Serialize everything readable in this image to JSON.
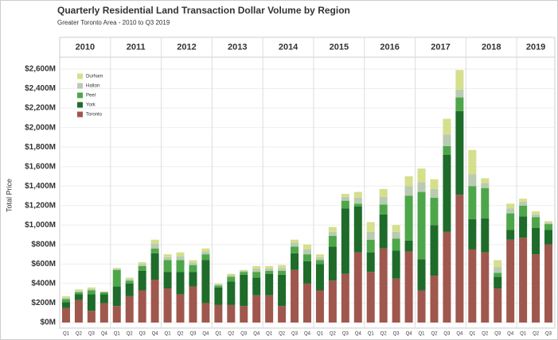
{
  "chart_data": {
    "type": "stacked_bar",
    "title": "Quarterly Residential Land Transaction Dollar Volume by Region",
    "subtitle": "Greater Toronto Area - 2010 to Q3 2019",
    "y_label": "Total Price",
    "years": [
      "2010",
      "2011",
      "2012",
      "2013",
      "2014",
      "2015",
      "2016",
      "2017",
      "2018",
      "2019"
    ],
    "categories": [
      "Q1",
      "Q2",
      "Q3",
      "Q4",
      "Q1",
      "Q2",
      "Q3",
      "Q4",
      "Q1",
      "Q2",
      "Q3",
      "Q4",
      "Q1",
      "Q2",
      "Q3",
      "Q4",
      "Q1",
      "Q2",
      "Q3",
      "Q4",
      "Q1",
      "Q2",
      "Q3",
      "Q4",
      "Q1",
      "Q2",
      "Q3",
      "Q4",
      "Q1",
      "Q2",
      "Q3",
      "Q4",
      "Q1",
      "Q2",
      "Q3",
      "Q4",
      "Q1",
      "Q2",
      "Q3"
    ],
    "series": [
      {
        "name": "Toronto",
        "color": "#a0574d",
        "values": [
          150,
          230,
          120,
          200,
          170,
          270,
          330,
          440,
          350,
          290,
          370,
          200,
          180,
          180,
          170,
          280,
          280,
          170,
          540,
          400,
          330,
          430,
          500,
          720,
          520,
          760,
          450,
          730,
          330,
          480,
          930,
          1310,
          750,
          720,
          350,
          850,
          870,
          700,
          800
        ]
      },
      {
        "name": "York",
        "color": "#1e6b2a",
        "values": [
          60,
          60,
          170,
          90,
          200,
          130,
          200,
          270,
          170,
          230,
          150,
          440,
          180,
          240,
          320,
          180,
          220,
          320,
          170,
          230,
          270,
          350,
          670,
          470,
          200,
          350,
          290,
          110,
          320,
          520,
          790,
          860,
          310,
          350,
          120,
          100,
          220,
          270,
          150
        ]
      },
      {
        "name": "Peel",
        "color": "#4ea64a",
        "values": [
          30,
          20,
          40,
          20,
          170,
          30,
          50,
          50,
          120,
          120,
          70,
          60,
          20,
          50,
          30,
          60,
          30,
          40,
          70,
          70,
          40,
          110,
          80,
          30,
          130,
          100,
          120,
          460,
          690,
          280,
          90,
          140,
          340,
          310,
          40,
          170,
          110,
          110,
          60
        ]
      },
      {
        "name": "Halton",
        "color": "#b9cbb0",
        "values": [
          15,
          15,
          15,
          5,
          10,
          15,
          20,
          50,
          30,
          40,
          25,
          30,
          10,
          15,
          10,
          30,
          25,
          30,
          40,
          50,
          30,
          40,
          40,
          60,
          80,
          80,
          70,
          100,
          100,
          90,
          120,
          80,
          120,
          50,
          60,
          50,
          40,
          30,
          15
        ]
      },
      {
        "name": "Durham",
        "color": "#d5df8c",
        "values": [
          15,
          15,
          15,
          5,
          10,
          15,
          20,
          40,
          30,
          40,
          25,
          30,
          10,
          15,
          10,
          30,
          25,
          30,
          30,
          50,
          30,
          50,
          30,
          60,
          100,
          80,
          70,
          100,
          140,
          100,
          160,
          200,
          250,
          50,
          70,
          50,
          30,
          30,
          15
        ]
      }
    ],
    "ylim": [
      0,
      2600
    ],
    "yticks": [
      {
        "value": 0,
        "label": "$0M"
      },
      {
        "value": 200,
        "label": "$200M"
      },
      {
        "value": 400,
        "label": "$400M"
      },
      {
        "value": 600,
        "label": "$600M"
      },
      {
        "value": 800,
        "label": "$800M"
      },
      {
        "value": 1000,
        "label": "$1,000M"
      },
      {
        "value": 1200,
        "label": "$1,200M"
      },
      {
        "value": 1400,
        "label": "$1,400M"
      },
      {
        "value": 1600,
        "label": "$1,600M"
      },
      {
        "value": 1800,
        "label": "$1,800M"
      },
      {
        "value": 2000,
        "label": "$2,000M"
      },
      {
        "value": 2200,
        "label": "$2,200M"
      },
      {
        "value": 2400,
        "label": "$2,400M"
      },
      {
        "value": 2600,
        "label": "$2,600M"
      }
    ],
    "grid": true,
    "legend": "upper left"
  }
}
